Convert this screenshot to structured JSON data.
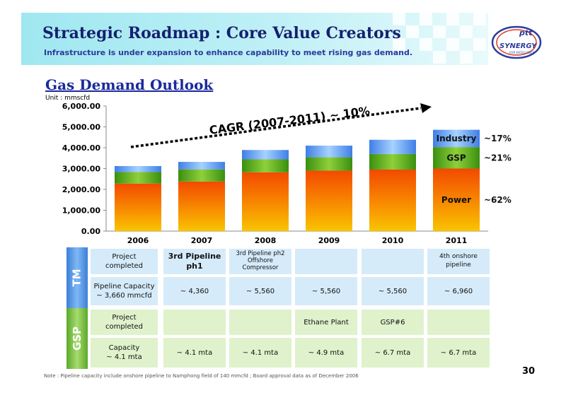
{
  "header": {
    "title": "Strategic Roadmap : Core Value Creators",
    "subtitle": "Infrastructure is under expansion to enhance capability to meet rising gas demand.",
    "logo_text": "ptt SYNERGY",
    "logo_tagline": "FOR EXCELLENCE"
  },
  "section_title": "Gas Demand Outlook",
  "unit": "Unit : mmscfd",
  "chart_data": {
    "type": "bar",
    "stacked": true,
    "categories": [
      "2006",
      "2007",
      "2008",
      "2009",
      "2010",
      "2011"
    ],
    "series": [
      {
        "name": "Power",
        "values": [
          2280,
          2380,
          2820,
          2900,
          2950,
          3000
        ],
        "color": "#f08a00"
      },
      {
        "name": "GSP",
        "values": [
          550,
          580,
          620,
          640,
          750,
          1030
        ],
        "color": "#6cbb24"
      },
      {
        "name": "Industry",
        "values": [
          290,
          360,
          450,
          560,
          680,
          830
        ],
        "color": "#5b9bef"
      }
    ],
    "ylim": [
      0,
      6000
    ],
    "yticks": [
      "0.00",
      "1,000.00",
      "2,000.00",
      "3,000.00",
      "4,000.00",
      "5,000.00",
      "6,000.00"
    ],
    "grid": false,
    "annotations": {
      "cagr": "CAGR (2007-2011) ~ 10%",
      "labels": [
        "Industry",
        "GSP",
        "Power"
      ],
      "shares": [
        "~17%",
        "~21%",
        "~62%"
      ]
    }
  },
  "table": {
    "groups": [
      {
        "name": "TM",
        "rows": [
          {
            "label": "Project\ncompleted",
            "cells": [
              "3rd Pipeline\nph1",
              "3rd Pipeline ph2\nOffshore\nCompressor",
              "",
              "",
              "4th onshore\npipeline"
            ]
          },
          {
            "label": "Pipeline Capacity\n~ 3,660 mmcfd",
            "cells": [
              "~ 4,360",
              "~ 5,560",
              "~ 5,560",
              "~ 5,560",
              "~ 6,960"
            ]
          }
        ]
      },
      {
        "name": "GSP",
        "rows": [
          {
            "label": "Project\ncompleted",
            "cells": [
              "",
              "",
              "Ethane Plant",
              "GSP#6",
              ""
            ]
          },
          {
            "label": "Capacity\n~ 4.1 mta",
            "cells": [
              "~ 4.1 mta",
              "~ 4.1 mta",
              "~ 4.9 mta",
              "~ 6.7 mta",
              "~ 6.7 mta"
            ]
          }
        ]
      }
    ]
  },
  "note": "Note : Pipeline capacity include onshore pipeline to Namphong field of 140 mmcfd ; Board approval data as of December 2006",
  "page_number": "30"
}
